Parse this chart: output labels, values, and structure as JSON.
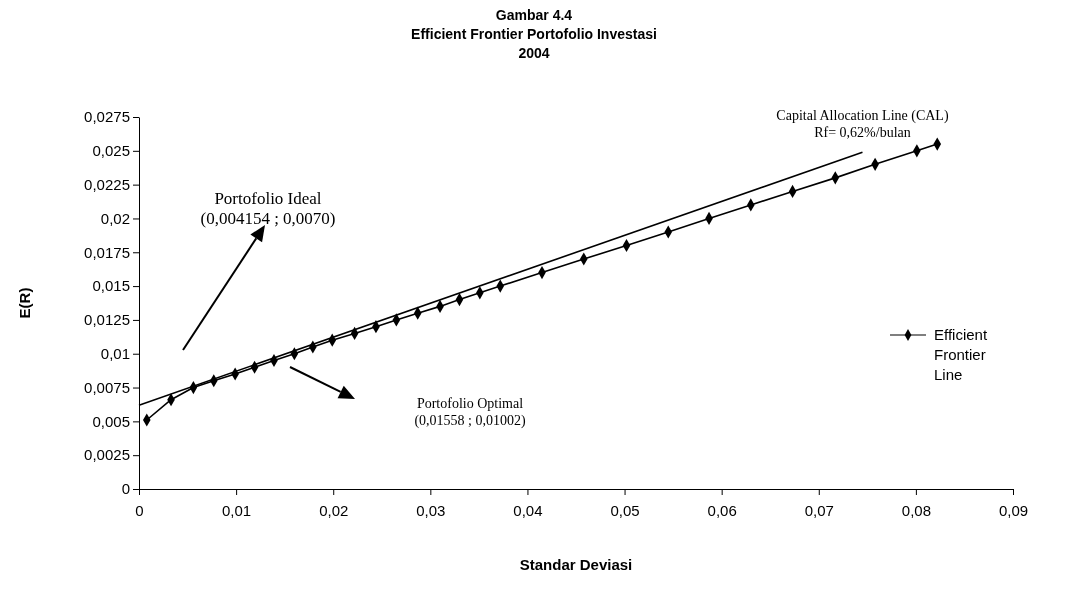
{
  "chart_data": {
    "type": "line",
    "title": "Gambar 4.4",
    "subtitle": "Efficient Frontier Portofolio Investasi\n2004",
    "xlabel": "Standar Deviasi",
    "ylabel": "E(R)",
    "xlim": [
      0,
      0.09
    ],
    "ylim": [
      0,
      0.0275
    ],
    "xticks": [
      0,
      {
        "value": 0.01,
        "label": "0,01"
      },
      {
        "value": 0.02,
        "label": "0,02"
      },
      {
        "value": 0.03,
        "label": "0,03"
      },
      {
        "value": 0.04,
        "label": "0,04"
      },
      {
        "value": 0.05,
        "label": "0,05"
      },
      {
        "value": 0.06,
        "label": "0,06"
      },
      {
        "value": 0.07,
        "label": "0,07"
      },
      {
        "value": 0.08,
        "label": "0,08"
      },
      {
        "value": 0.09,
        "label": "0,09"
      }
    ],
    "yticks": [
      0,
      {
        "value": 0.0025,
        "label": "0,0025"
      },
      {
        "value": 0.005,
        "label": "0,005"
      },
      {
        "value": 0.0075,
        "label": "0,0075"
      },
      {
        "value": 0.01,
        "label": "0,01"
      },
      {
        "value": 0.0125,
        "label": "0,0125"
      },
      {
        "value": 0.015,
        "label": "0,015"
      },
      {
        "value": 0.0175,
        "label": "0,0175"
      },
      {
        "value": 0.02,
        "label": "0,02"
      },
      {
        "value": 0.0225,
        "label": "0,0225"
      },
      {
        "value": 0.025,
        "label": "0,025"
      },
      {
        "value": 0.0275,
        "label": "0,0275"
      }
    ],
    "grid": false,
    "legend": "right",
    "series": [
      {
        "name": "Efficient Frontier Line",
        "color": "#000000",
        "marker": "diamond",
        "x": [
          0.0008,
          0.0033,
          0.0056,
          0.0077,
          0.0099,
          0.0119,
          0.0139,
          0.016,
          0.0179,
          0.0199,
          0.0222,
          0.0244,
          0.0265,
          0.0287,
          0.031,
          0.033,
          0.0351,
          0.0372,
          0.0415,
          0.0458,
          0.0502,
          0.0545,
          0.0587,
          0.063,
          0.0673,
          0.0717,
          0.0758,
          0.0801,
          0.0822
        ],
        "values": [
          0.0051,
          0.0066,
          0.0075,
          0.008,
          0.0085,
          0.009,
          0.0095,
          0.01,
          0.0105,
          0.011,
          0.0115,
          0.012,
          0.0125,
          0.013,
          0.0135,
          0.014,
          0.0145,
          0.015,
          0.016,
          0.017,
          0.018,
          0.019,
          0.02,
          0.021,
          0.022,
          0.023,
          0.024,
          0.025,
          0.0255
        ]
      },
      {
        "color": "#000000",
        "marker": "none",
        "x": [
          0,
          0.0745
        ],
        "values": [
          0.0062,
          0.0249
        ]
      }
    ],
    "annotations": [
      "Portofolio Ideal\n(0,004154 ; 0,0070)",
      "Portofolio Optimal\n(0,01558 ; 0,01002)",
      {
        "text": "Capital Allocation Line (CAL)\nRf= 0,62%/bulan",
        "x": 0.0745,
        "y": 0.0249
      }
    ]
  }
}
